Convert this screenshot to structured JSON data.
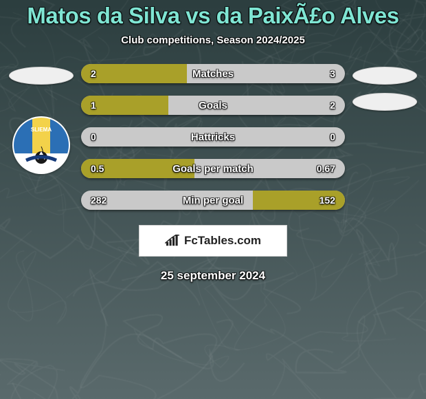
{
  "background": {
    "top_color": "#2c3e3f",
    "bottom_color": "#5a6a6c",
    "swirl_color": "rgba(255,255,255,0.05)"
  },
  "title": {
    "text": "Matos da Silva vs da PaixÃ£o Alves",
    "color": "#7fe5d3"
  },
  "subtitle": {
    "text": "Club competitions, Season 2024/2025",
    "color": "#ffffff"
  },
  "text_outline_color": "#000000",
  "stat_bar": {
    "track_color": "#c9c9c9",
    "fill_left_color": "#a9a029",
    "fill_right_color": "#a9a029",
    "label_color": "#ffffff",
    "value_color": "#ffffff"
  },
  "stats": [
    {
      "label": "Matches",
      "left_val": "2",
      "right_val": "3",
      "left_pct": 40,
      "right_pct": 0
    },
    {
      "label": "Goals",
      "left_val": "1",
      "right_val": "2",
      "left_pct": 33,
      "right_pct": 0
    },
    {
      "label": "Hattricks",
      "left_val": "0",
      "right_val": "0",
      "left_pct": 0,
      "right_pct": 0
    },
    {
      "label": "Goals per match",
      "left_val": "0.5",
      "right_val": "0.67",
      "left_pct": 43,
      "right_pct": 0
    },
    {
      "label": "Min per goal",
      "left_val": "282",
      "right_val": "152",
      "left_pct": 0,
      "right_pct": 35
    }
  ],
  "left_side": {
    "flag_color": "#efefef",
    "show_club": true,
    "club_stripes": [
      "#2b6fb5",
      "#f3d24a",
      "#2b6fb5"
    ]
  },
  "right_side": {
    "flags": [
      "#efefef",
      "#efefef"
    ],
    "show_club": false
  },
  "brand": {
    "text": "FcTables.com"
  },
  "datestamp": {
    "text": "25 september 2024",
    "color": "#ffffff"
  }
}
